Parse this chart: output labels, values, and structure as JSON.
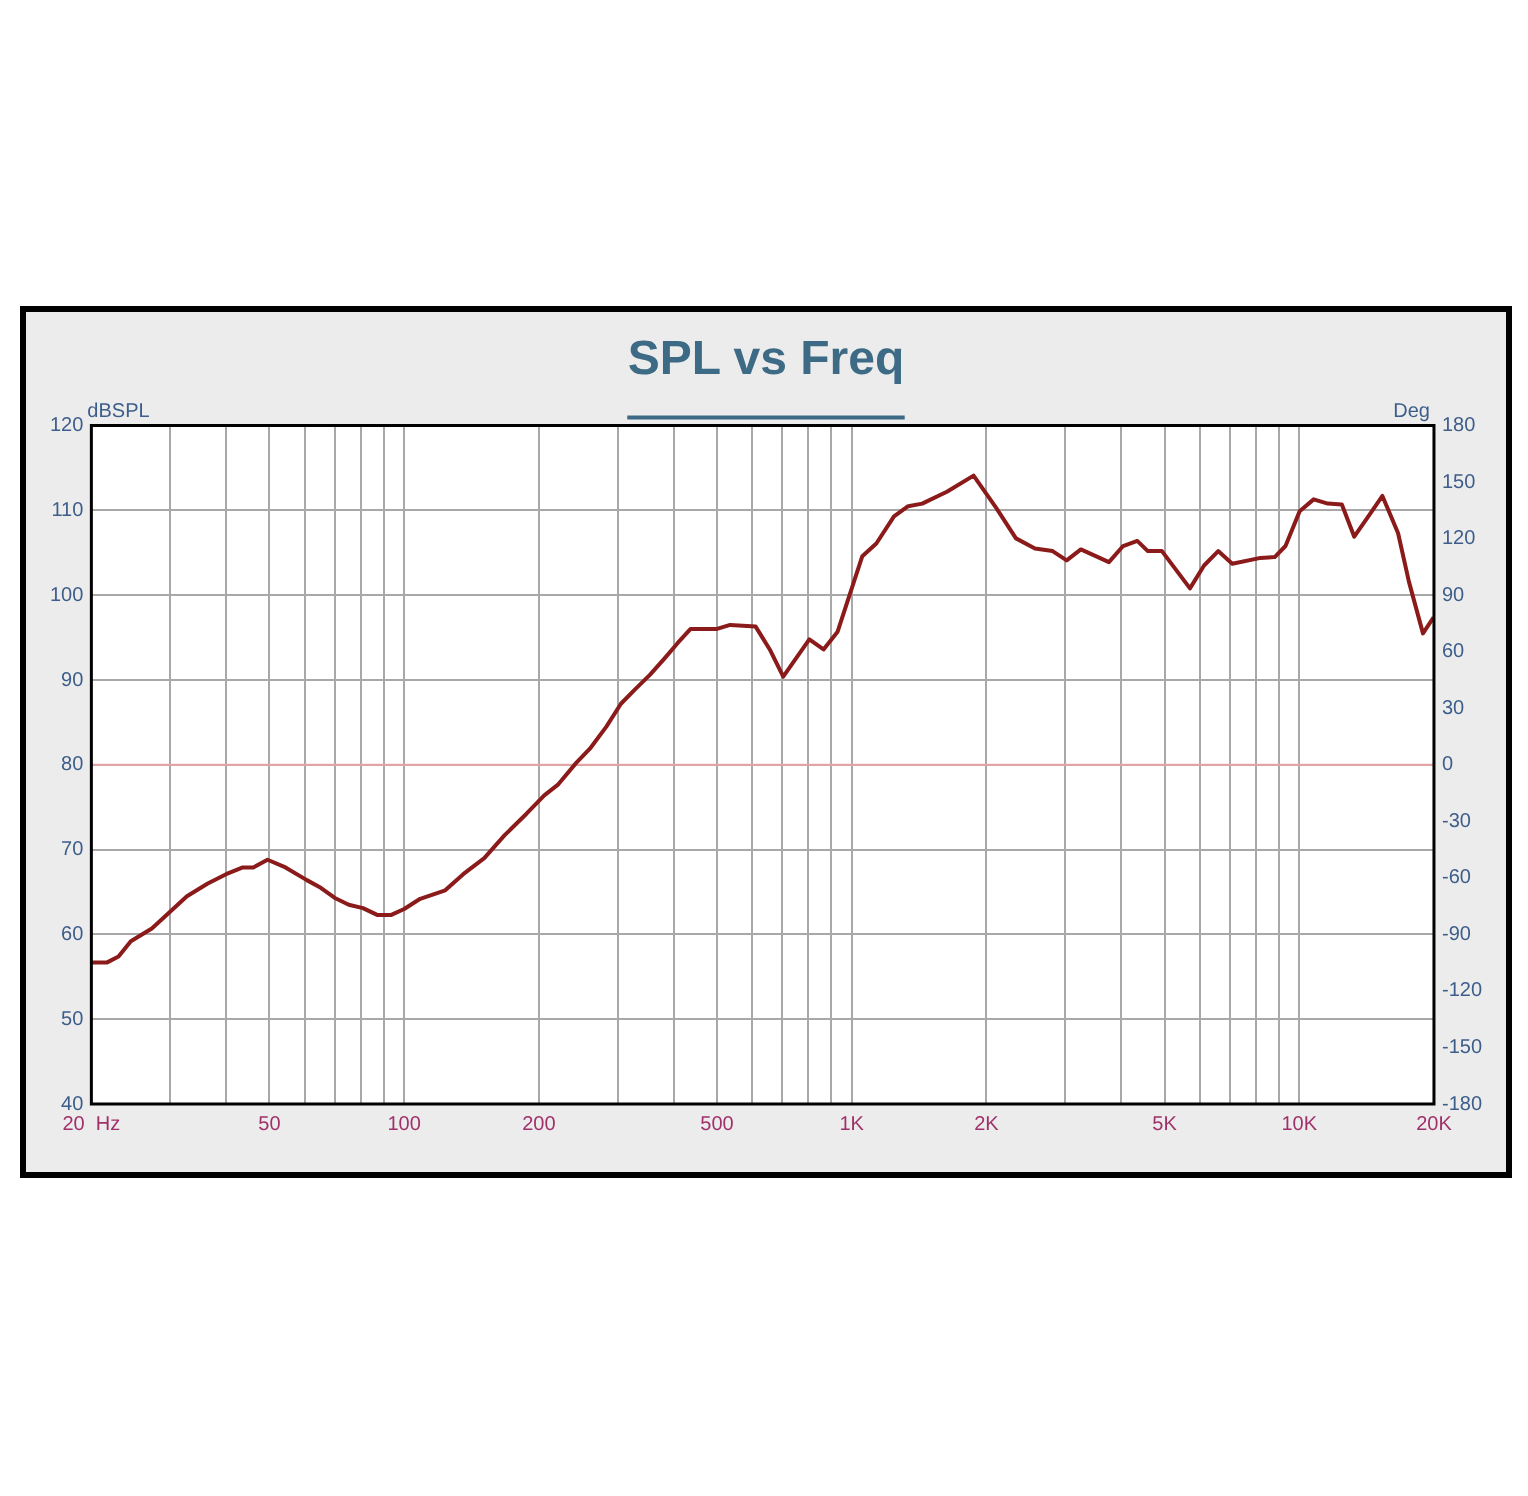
{
  "chart_data": {
    "type": "line",
    "title": "SPL vs Freq",
    "ylabel": "dBSPL",
    "y2label": "Deg",
    "log": "x",
    "grid": true,
    "legend": false,
    "marker": "none",
    "line_style": "solid",
    "xlim": [
      20,
      20000
    ],
    "xticks": [
      {
        "value": 20,
        "label": "20  Hz"
      },
      {
        "value": 30,
        "label": null
      },
      {
        "value": 40,
        "label": null
      },
      {
        "value": 50,
        "label": "50"
      },
      {
        "value": 60,
        "label": null
      },
      {
        "value": 70,
        "label": null
      },
      {
        "value": 80,
        "label": null
      },
      {
        "value": 90,
        "label": null
      },
      {
        "value": 100,
        "label": "100"
      },
      {
        "value": 200,
        "label": "200"
      },
      {
        "value": 300,
        "label": null
      },
      {
        "value": 400,
        "label": null
      },
      {
        "value": 500,
        "label": "500"
      },
      {
        "value": 600,
        "label": null
      },
      {
        "value": 700,
        "label": null
      },
      {
        "value": 800,
        "label": null
      },
      {
        "value": 900,
        "label": null
      },
      {
        "value": 1000,
        "label": "1K"
      },
      {
        "value": 2000,
        "label": "2K"
      },
      {
        "value": 3000,
        "label": null
      },
      {
        "value": 4000,
        "label": null
      },
      {
        "value": 5000,
        "label": "5K"
      },
      {
        "value": 6000,
        "label": null
      },
      {
        "value": 7000,
        "label": null
      },
      {
        "value": 8000,
        "label": null
      },
      {
        "value": 9000,
        "label": null
      },
      {
        "value": 10000,
        "label": "10K"
      },
      {
        "value": 20000,
        "label": "20K"
      }
    ],
    "ylim": [
      40,
      120
    ],
    "yticks": [
      40,
      50,
      60,
      70,
      80,
      90,
      100,
      110,
      120
    ],
    "y2lim": [
      -180,
      180
    ],
    "y2ticks": [
      -180,
      -150,
      -120,
      -90,
      -60,
      -30,
      0,
      30,
      60,
      90,
      120,
      150,
      180
    ],
    "ref_lines": [
      {
        "axis": "y",
        "value": 80,
        "color": "#e8a4a4"
      }
    ],
    "series": [
      {
        "color": "#8b1a1a",
        "x": [
          20,
          21.7,
          23,
          24.5,
          27.3,
          29.9,
          32.7,
          36.4,
          40,
          43.6,
          46,
          49.5,
          54.3,
          60.6,
          65.1,
          70,
          75.2,
          80.9,
          87,
          93.6,
          100,
          108.6,
          123.5,
          135.5,
          151,
          167.7,
          187.4,
          205.6,
          221,
          242,
          260,
          283,
          305,
          328,
          354,
          381,
          409,
          436,
          498,
          535,
          610,
          656,
          703,
          804,
          865,
          930,
          1056,
          1135,
          1243,
          1337,
          1437,
          1632,
          1872,
          2103,
          2328,
          2567,
          2811,
          3022,
          3251,
          3756,
          4040,
          4346,
          4588,
          4934,
          5699,
          6128,
          6590,
          7085,
          8194,
          8814,
          9317,
          10020,
          10770,
          11580,
          12450,
          13270,
          14270,
          15340,
          16630,
          17580,
          18900,
          19960
        ],
        "values": [
          56.7,
          56.7,
          57.4,
          59.2,
          60.7,
          62.6,
          64.5,
          66,
          67.1,
          67.9,
          67.9,
          68.8,
          67.9,
          66.4,
          65.5,
          64.3,
          63.5,
          63.1,
          62.3,
          62.3,
          63,
          64.2,
          65.2,
          67.1,
          69,
          71.7,
          74.2,
          76.4,
          77.7,
          80.2,
          81.9,
          84.5,
          87.2,
          88.9,
          90.6,
          92.5,
          94.4,
          96,
          96,
          96.5,
          96.3,
          93.6,
          90.4,
          94.8,
          93.6,
          95.7,
          104.6,
          106.1,
          109.3,
          110.5,
          110.8,
          112.2,
          114.1,
          110.3,
          106.7,
          105.5,
          105.2,
          104.1,
          105.4,
          103.9,
          105.8,
          106.4,
          105.2,
          105.2,
          100.8,
          103.5,
          105.2,
          103.7,
          104.4,
          104.5,
          105.8,
          109.9,
          111.3,
          110.8,
          110.7,
          106.9,
          109.3,
          111.7,
          107.3,
          101.6,
          95.5,
          97.4
        ]
      }
    ]
  }
}
